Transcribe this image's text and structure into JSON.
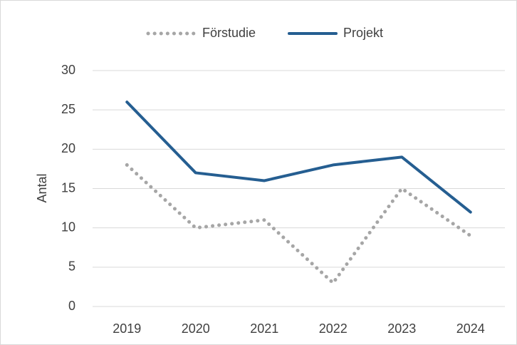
{
  "chart_data": {
    "type": "line",
    "ylabel": "Antal",
    "categories": [
      "2019",
      "2020",
      "2021",
      "2022",
      "2023",
      "2024"
    ],
    "series": [
      {
        "name": "Förstudie",
        "color": "#a6a6a6",
        "dash": "dotted",
        "values": [
          18,
          10,
          11,
          3,
          15,
          9
        ]
      },
      {
        "name": "Projekt",
        "color": "#255e91",
        "dash": "solid",
        "values": [
          26,
          17,
          16,
          18,
          19,
          12
        ]
      }
    ],
    "ylim": [
      0,
      30
    ],
    "yticks": [
      0,
      5,
      10,
      15,
      20,
      25,
      30
    ],
    "grid": true,
    "legend": "top"
  }
}
